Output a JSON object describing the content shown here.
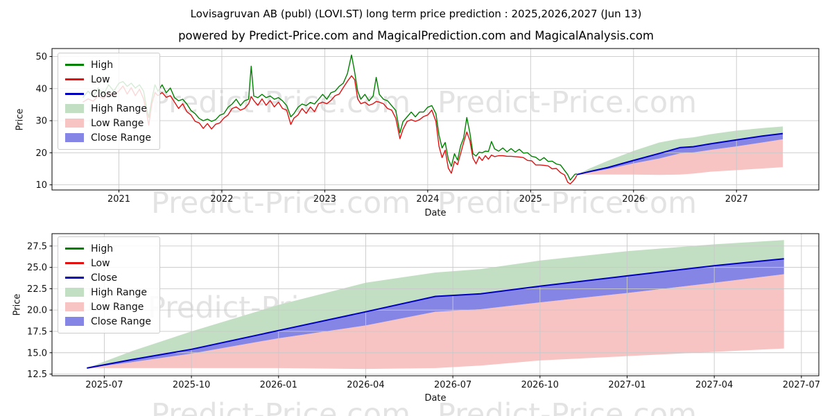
{
  "page": {
    "title": "Lovisagruvan AB (publ) (LOVI.ST) long term price prediction : 2025,2026,2027 (Jun 13)",
    "subtitle": "powered by Predict-Price.com and MagicalPrediction.com and MagicalAnalysis.com"
  },
  "watermark": {
    "text": "Predict-Price.com"
  },
  "colors": {
    "high_line": "#008000",
    "low_line": "#e01111",
    "close_line": "#0000bb",
    "high_range_fill": "#c3dfc3",
    "low_range_fill": "#f7c3c3",
    "close_range_fill": "#8585e6",
    "grid": "#c9c9c9",
    "spine": "#000000",
    "tick_text": "#111111"
  },
  "legend": {
    "items": [
      {
        "label": "High",
        "type": "line",
        "color": "#008000"
      },
      {
        "label": "Low",
        "type": "line",
        "color": "#e01111"
      },
      {
        "label": "Close",
        "type": "line",
        "color": "#0000bb"
      },
      {
        "label": "High Range",
        "type": "patch",
        "color": "#c3dfc3"
      },
      {
        "label": "Low Range",
        "type": "patch",
        "color": "#f7c3c3"
      },
      {
        "label": "Close Range",
        "type": "patch",
        "color": "#8585e6"
      }
    ]
  },
  "chart_data": {
    "type": "line",
    "top_chart": {
      "xlabel": "Date",
      "ylabel": "Price",
      "xlim": [
        2020.35,
        2027.8
      ],
      "ylim": [
        8.4,
        52.5
      ],
      "xticks": {
        "values": [
          2021,
          2022,
          2023,
          2024,
          2025,
          2026,
          2027
        ],
        "labels": [
          "2021",
          "2022",
          "2023",
          "2024",
          "2025",
          "2026",
          "2027"
        ]
      },
      "yticks": {
        "values": [
          10,
          20,
          30,
          40,
          50
        ],
        "labels": [
          "10",
          "20",
          "30",
          "40",
          "50"
        ]
      },
      "historical": {
        "columns": [
          "date_frac_year",
          "high",
          "low"
        ],
        "rows": [
          [
            2020.65,
            37.2,
            35.8
          ],
          [
            2020.7,
            39.2,
            36.8
          ],
          [
            2020.75,
            37.5,
            36.1
          ],
          [
            2020.8,
            40.2,
            37.8
          ],
          [
            2020.85,
            38.2,
            36.8
          ],
          [
            2020.9,
            41.2,
            38.8
          ],
          [
            2020.95,
            39.2,
            37.8
          ],
          [
            2021.0,
            41.7,
            39.3
          ],
          [
            2021.04,
            42.2,
            40.8
          ],
          [
            2021.08,
            40.7,
            38.3
          ],
          [
            2021.12,
            41.7,
            40.3
          ],
          [
            2021.16,
            40.2,
            37.8
          ],
          [
            2021.2,
            41.2,
            39.8
          ],
          [
            2021.24,
            39.2,
            36.8
          ],
          [
            2021.27,
            33.7,
            32.3
          ],
          [
            2021.29,
            31.0,
            28.6
          ],
          [
            2021.32,
            36.7,
            35.3
          ],
          [
            2021.35,
            41.2,
            38.8
          ],
          [
            2021.38,
            39.2,
            37.8
          ],
          [
            2021.42,
            41.2,
            38.8
          ],
          [
            2021.46,
            38.7,
            37.3
          ],
          [
            2021.5,
            40.2,
            37.8
          ],
          [
            2021.54,
            37.2,
            35.8
          ],
          [
            2021.58,
            36.2,
            33.8
          ],
          [
            2021.62,
            36.7,
            35.3
          ],
          [
            2021.66,
            35.2,
            32.8
          ],
          [
            2021.7,
            33.2,
            31.8
          ],
          [
            2021.74,
            32.2,
            29.8
          ],
          [
            2021.78,
            30.7,
            29.3
          ],
          [
            2021.82,
            30.0,
            27.6
          ],
          [
            2021.86,
            30.5,
            29.1
          ],
          [
            2021.9,
            29.8,
            27.4
          ],
          [
            2021.94,
            30.3,
            28.9
          ],
          [
            2021.98,
            31.7,
            29.3
          ],
          [
            2022.02,
            32.2,
            30.8
          ],
          [
            2022.06,
            34.2,
            31.8
          ],
          [
            2022.1,
            35.2,
            33.8
          ],
          [
            2022.14,
            36.7,
            34.3
          ],
          [
            2022.18,
            34.7,
            33.3
          ],
          [
            2022.22,
            36.2,
            33.8
          ],
          [
            2022.26,
            36.7,
            35.3
          ],
          [
            2022.285,
            47.0,
            37.5
          ],
          [
            2022.31,
            37.7,
            36.3
          ],
          [
            2022.35,
            37.2,
            34.8
          ],
          [
            2022.39,
            38.2,
            36.8
          ],
          [
            2022.43,
            37.2,
            34.8
          ],
          [
            2022.47,
            37.7,
            36.3
          ],
          [
            2022.51,
            36.7,
            34.3
          ],
          [
            2022.55,
            37.2,
            35.8
          ],
          [
            2022.59,
            36.2,
            33.8
          ],
          [
            2022.63,
            34.7,
            33.3
          ],
          [
            2022.67,
            31.2,
            28.8
          ],
          [
            2022.7,
            32.2,
            30.8
          ],
          [
            2022.74,
            34.2,
            31.8
          ],
          [
            2022.78,
            35.2,
            33.8
          ],
          [
            2022.82,
            34.7,
            32.3
          ],
          [
            2022.86,
            35.7,
            34.3
          ],
          [
            2022.9,
            35.2,
            32.8
          ],
          [
            2022.94,
            36.7,
            35.3
          ],
          [
            2022.98,
            38.2,
            35.8
          ],
          [
            2023.02,
            36.7,
            35.3
          ],
          [
            2023.06,
            38.7,
            36.3
          ],
          [
            2023.1,
            39.2,
            37.8
          ],
          [
            2023.14,
            40.7,
            38.3
          ],
          [
            2023.18,
            41.7,
            40.3
          ],
          [
            2023.22,
            44.7,
            42.3
          ],
          [
            2023.26,
            50.5,
            44.0
          ],
          [
            2023.29,
            45.2,
            42.8
          ],
          [
            2023.32,
            39.2,
            36.8
          ],
          [
            2023.35,
            36.7,
            35.3
          ],
          [
            2023.39,
            38.2,
            35.8
          ],
          [
            2023.43,
            36.2,
            34.8
          ],
          [
            2023.47,
            37.7,
            35.3
          ],
          [
            2023.5,
            43.5,
            36.0
          ],
          [
            2023.53,
            38.2,
            35.8
          ],
          [
            2023.57,
            36.7,
            35.3
          ],
          [
            2023.61,
            36.2,
            33.8
          ],
          [
            2023.65,
            34.7,
            33.3
          ],
          [
            2023.69,
            33.2,
            30.8
          ],
          [
            2023.73,
            26.2,
            24.4
          ],
          [
            2023.76,
            29.7,
            27.3
          ],
          [
            2023.8,
            31.2,
            29.8
          ],
          [
            2023.84,
            32.7,
            30.3
          ],
          [
            2023.88,
            31.2,
            29.8
          ],
          [
            2023.92,
            32.7,
            30.3
          ],
          [
            2023.96,
            32.7,
            31.3
          ],
          [
            2024.0,
            34.2,
            31.8
          ],
          [
            2024.04,
            34.7,
            33.3
          ],
          [
            2024.08,
            32.2,
            29.8
          ],
          [
            2024.11,
            25.5,
            22.0
          ],
          [
            2024.14,
            21.5,
            18.5
          ],
          [
            2024.17,
            23.2,
            20.8
          ],
          [
            2024.2,
            18.0,
            15.2
          ],
          [
            2024.23,
            15.8,
            13.6
          ],
          [
            2024.26,
            19.7,
            17.3
          ],
          [
            2024.29,
            17.7,
            16.3
          ],
          [
            2024.32,
            22.2,
            19.8
          ],
          [
            2024.35,
            24.7,
            23.3
          ],
          [
            2024.38,
            31.0,
            26.5
          ],
          [
            2024.41,
            26.2,
            23.8
          ],
          [
            2024.44,
            19.7,
            18.3
          ],
          [
            2024.47,
            19.0,
            16.6
          ],
          [
            2024.5,
            20.2,
            18.8
          ],
          [
            2024.53,
            20.0,
            17.6
          ],
          [
            2024.56,
            20.5,
            19.1
          ],
          [
            2024.59,
            20.4,
            18.0
          ],
          [
            2024.62,
            23.5,
            19.3
          ],
          [
            2024.65,
            21.2,
            18.8
          ],
          [
            2024.69,
            20.5,
            19.1
          ],
          [
            2024.73,
            21.5,
            19.1
          ],
          [
            2024.77,
            20.3,
            18.9
          ],
          [
            2024.81,
            21.3,
            18.9
          ],
          [
            2024.85,
            20.2,
            18.8
          ],
          [
            2024.89,
            21.1,
            18.7
          ],
          [
            2024.93,
            19.9,
            18.5
          ],
          [
            2024.97,
            20.0,
            17.6
          ],
          [
            2025.01,
            18.9,
            17.5
          ],
          [
            2025.05,
            18.6,
            16.2
          ],
          [
            2025.09,
            17.6,
            16.2
          ],
          [
            2025.13,
            18.5,
            16.1
          ],
          [
            2025.17,
            17.3,
            15.9
          ],
          [
            2025.21,
            17.4,
            15.0
          ],
          [
            2025.25,
            16.5,
            15.1
          ],
          [
            2025.29,
            16.2,
            13.8
          ],
          [
            2025.33,
            14.5,
            13.1
          ],
          [
            2025.36,
            13.2,
            10.8
          ],
          [
            2025.385,
            11.5,
            10.3
          ],
          [
            2025.41,
            12.5,
            11.1
          ],
          [
            2025.43,
            13.3,
            11.9
          ],
          [
            2025.45,
            13.4,
            13.0
          ]
        ]
      }
    },
    "bottom_chart": {
      "xlabel": "Date",
      "ylabel": "Price",
      "xlim": [
        2025.35,
        2027.55
      ],
      "ylim": [
        12.3,
        28.95
      ],
      "xticks": {
        "values": [
          2025.5,
          2025.75,
          2026.0,
          2026.25,
          2026.5,
          2026.75,
          2027.0,
          2027.25,
          2027.5
        ],
        "labels": [
          "2025-07",
          "2025-10",
          "2026-01",
          "2026-04",
          "2026-07",
          "2026-10",
          "2027-01",
          "2027-04",
          "2027-07"
        ]
      },
      "yticks": {
        "values": [
          12.5,
          15.0,
          17.5,
          20.0,
          22.5,
          25.0,
          27.5
        ],
        "labels": [
          "12.5",
          "15.0",
          "17.5",
          "20.0",
          "22.5",
          "25.0",
          "27.5"
        ]
      }
    },
    "prediction": {
      "dates": [
        2025.45,
        2025.58,
        2025.75,
        2026.0,
        2026.25,
        2026.45,
        2026.58,
        2026.75,
        2027.0,
        2027.25,
        2027.45
      ],
      "close": [
        13.2,
        14.2,
        15.4,
        17.6,
        19.8,
        21.6,
        21.9,
        22.8,
        24.0,
        25.2,
        26.0
      ],
      "high_range_top": [
        13.2,
        15.2,
        17.5,
        20.6,
        23.2,
        24.4,
        24.8,
        25.8,
        26.9,
        27.7,
        28.2
      ],
      "close_range_low": [
        13.2,
        13.9,
        14.9,
        16.7,
        18.2,
        19.8,
        20.1,
        20.9,
        22.0,
        23.2,
        24.2
      ],
      "low_range_bottom": [
        13.2,
        13.2,
        13.2,
        13.2,
        13.1,
        13.2,
        13.5,
        14.1,
        14.6,
        15.1,
        15.5
      ]
    }
  }
}
